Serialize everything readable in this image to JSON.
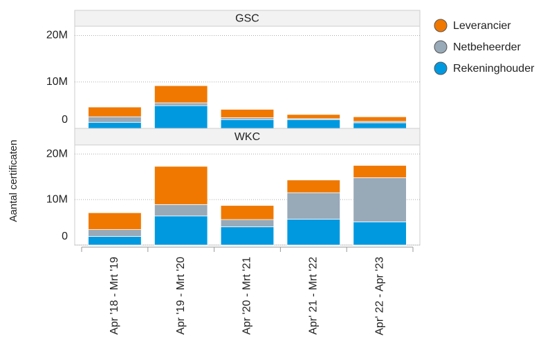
{
  "chart_data": [
    {
      "type": "bar",
      "title": "GSC",
      "y_label": "Aantal certificaten",
      "series": [
        {
          "name": "Leverancier",
          "color": "#f07800",
          "values": [
            2100000,
            3700000,
            1800000,
            900000,
            1000000
          ]
        },
        {
          "name": "Netbeheerder",
          "color": "#98a9b8",
          "values": [
            1200000,
            600000,
            400000,
            200000,
            300000
          ]
        },
        {
          "name": "Rekeninghouder",
          "color": "#0099e0",
          "values": [
            1300000,
            4900000,
            1900000,
            1900000,
            1200000
          ]
        }
      ],
      "ylim": [
        0,
        22000000
      ],
      "yticks": [
        0,
        {
          "value": 10000000,
          "label": "10M"
        },
        {
          "value": 20000000,
          "label": "20M"
        }
      ],
      "grid": true
    },
    {
      "type": "bar",
      "title": "WKC",
      "categories": [
        "Apr '18 - Mrt '19",
        "Apr '19 - Mrt '20",
        "Apr '20 - Mrt '21",
        "Apr' 21 - Mrt '22",
        "Apr' 22 - Apr '23"
      ],
      "series": [
        {
          "color": "#f07800",
          "values": [
            3700000,
            8400000,
            3100000,
            2800000,
            2700000
          ]
        },
        {
          "color": "#98a9b8",
          "values": [
            1500000,
            2500000,
            1600000,
            5800000,
            9700000
          ]
        },
        {
          "color": "#0099e0",
          "values": [
            1900000,
            6400000,
            4000000,
            5700000,
            5100000
          ]
        }
      ],
      "ylim": [
        0,
        22000000
      ],
      "yticks": [
        0,
        {
          "value": 10000000,
          "label": "10M"
        },
        {
          "value": 20000000,
          "label": "20M"
        }
      ],
      "grid": true
    }
  ]
}
